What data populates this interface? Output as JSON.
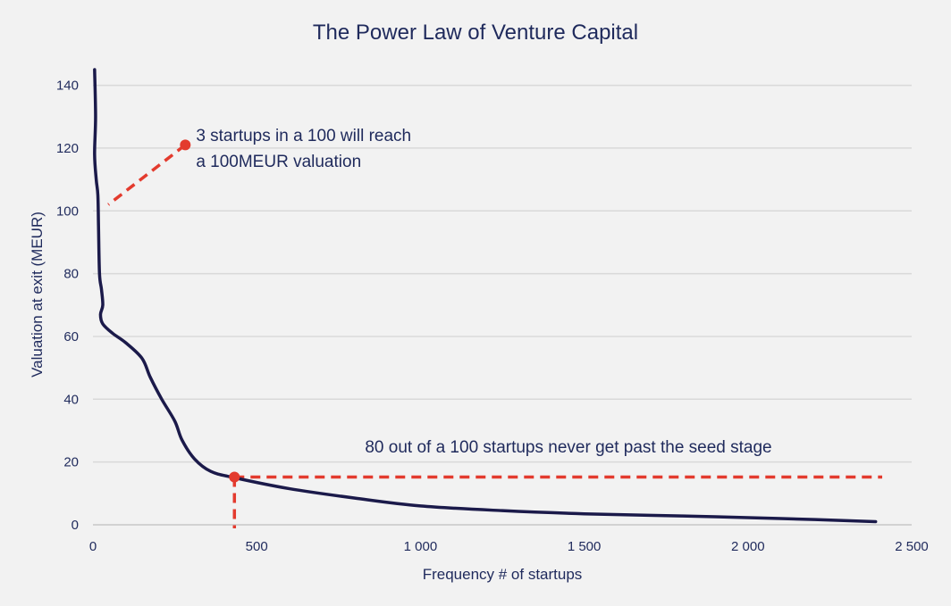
{
  "chart_data": {
    "type": "line",
    "title": "The Power Law of Venture Capital",
    "xlabel": "Frequency # of startups",
    "ylabel": "Valuation at exit (MEUR)",
    "xlim": [
      0,
      2500
    ],
    "ylim": [
      0,
      145
    ],
    "xticks": [
      {
        "value": 0,
        "label": "0"
      },
      {
        "value": 500,
        "label": "500"
      },
      {
        "value": 1000,
        "label": "1 000"
      },
      {
        "value": 1500,
        "label": "1 500"
      },
      {
        "value": 2000,
        "label": "2 000"
      },
      {
        "value": 2500,
        "label": "2 500"
      }
    ],
    "yticks": [
      {
        "value": 0,
        "label": "0"
      },
      {
        "value": 20,
        "label": "20"
      },
      {
        "value": 40,
        "label": "40"
      },
      {
        "value": 60,
        "label": "60"
      },
      {
        "value": 80,
        "label": "80"
      },
      {
        "value": 100,
        "label": "100"
      },
      {
        "value": 120,
        "label": "120"
      },
      {
        "value": 140,
        "label": "140"
      }
    ],
    "grid": "horizontal",
    "series": [
      {
        "values": [
          [
            5,
            145
          ],
          [
            8,
            130
          ],
          [
            5,
            118
          ],
          [
            10,
            110
          ],
          [
            15,
            105
          ],
          [
            17,
            95
          ],
          [
            20,
            80
          ],
          [
            26,
            75
          ],
          [
            30,
            70
          ],
          [
            23,
            67
          ],
          [
            30,
            64
          ],
          [
            60,
            61
          ],
          [
            100,
            58
          ],
          [
            150,
            53
          ],
          [
            175,
            47
          ],
          [
            210,
            40
          ],
          [
            250,
            33
          ],
          [
            272,
            27
          ],
          [
            310,
            21
          ],
          [
            360,
            17
          ],
          [
            432,
            15
          ],
          [
            600,
            11.5
          ],
          [
            800,
            8.5
          ],
          [
            1000,
            6
          ],
          [
            1250,
            4.5
          ],
          [
            1500,
            3.5
          ],
          [
            1800,
            2.8
          ],
          [
            2100,
            2
          ],
          [
            2390,
            1
          ]
        ],
        "color": "#1b1a4a"
      }
    ],
    "annotations": [
      {
        "line1": "3 startups in a 100 will reach",
        "line2": "a 100MEUR valuation",
        "point": [
          282,
          121
        ],
        "line_from": [
          282,
          121
        ],
        "line_to": [
          47,
          102
        ],
        "color": "#e33b2e"
      },
      {
        "text": "80 out of a 100 startups never get past the seed stage",
        "point": [
          432,
          15.2
        ],
        "hline_to_x": 2410,
        "vline_to_y": 0,
        "color": "#e33b2e"
      }
    ],
    "colors": {
      "background": "#f2f2f2",
      "text": "#1f2a5c",
      "grid": "#d9d9d9",
      "axis": "#c8c8c8"
    }
  }
}
